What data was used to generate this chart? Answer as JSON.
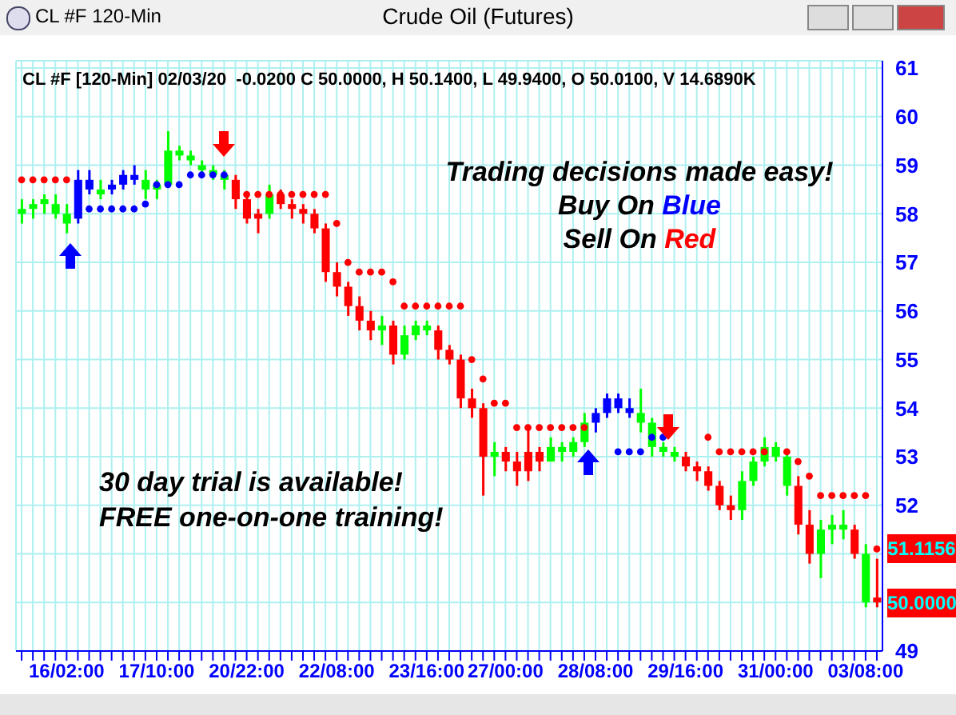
{
  "chart_data": {
    "type": "candlestick",
    "title": "Crude Oil (Futures)",
    "subtitle": "CL #F [120-Min] 02/03/20  -0.0200 C 50.0000, H 50.1400, L 49.9400, O 50.0100, V 14.6890K",
    "annotations": [
      "CL #F 120-Min",
      "Trading decisions made easy!",
      "Buy On Blue",
      "Sell On Red",
      "30 day trial is available!",
      "FREE one-on-one training!",
      {
        "text": "51.1156",
        "y": 51.1156
      },
      {
        "text": "50.0000",
        "y": 50.0
      }
    ],
    "categories": [
      null,
      null,
      null,
      null,
      "16/02:00",
      null,
      null,
      null,
      null,
      null,
      null,
      null,
      "17/10:00",
      null,
      null,
      null,
      null,
      null,
      null,
      null,
      "20/22:00",
      null,
      null,
      null,
      null,
      null,
      null,
      null,
      "22/08:00",
      null,
      null,
      null,
      null,
      null,
      null,
      null,
      "23/16:00",
      null,
      null,
      null,
      null,
      null,
      null,
      "27/00:00",
      null,
      null,
      null,
      null,
      null,
      null,
      null,
      "28/08:00",
      null,
      null,
      null,
      null,
      null,
      null,
      null,
      "29/16:00",
      null,
      null,
      null,
      null,
      null,
      null,
      null,
      "31/00:00",
      null,
      null,
      null,
      null,
      null,
      null,
      null,
      "03/08:00",
      null
    ],
    "ohlc": [
      [
        58.0,
        58.3,
        57.8,
        58.1
      ],
      [
        58.1,
        58.3,
        57.9,
        58.2
      ],
      [
        58.2,
        58.4,
        58.0,
        58.3
      ],
      [
        58.0,
        58.4,
        57.9,
        58.2
      ],
      [
        57.8,
        58.2,
        57.6,
        58.0
      ],
      [
        57.9,
        58.9,
        57.8,
        58.7
      ],
      [
        58.5,
        58.9,
        58.4,
        58.7
      ],
      [
        58.4,
        58.7,
        58.3,
        58.5
      ],
      [
        58.5,
        58.7,
        58.4,
        58.6
      ],
      [
        58.6,
        58.9,
        58.5,
        58.8
      ],
      [
        58.7,
        59.0,
        58.6,
        58.8
      ],
      [
        58.5,
        58.9,
        58.3,
        58.7
      ],
      [
        58.5,
        58.7,
        58.3,
        58.6
      ],
      [
        58.6,
        59.7,
        58.6,
        59.3
      ],
      [
        59.2,
        59.4,
        59.1,
        59.3
      ],
      [
        59.1,
        59.3,
        59.0,
        59.2
      ],
      [
        58.9,
        59.1,
        58.8,
        59.0
      ],
      [
        58.8,
        59.0,
        58.7,
        58.9
      ],
      [
        58.7,
        58.9,
        58.5,
        58.8
      ],
      [
        58.7,
        58.8,
        58.1,
        58.3
      ],
      [
        58.3,
        58.4,
        57.8,
        57.9
      ],
      [
        58.0,
        58.1,
        57.6,
        57.9
      ],
      [
        58.0,
        58.6,
        57.9,
        58.4
      ],
      [
        58.4,
        58.5,
        58.1,
        58.2
      ],
      [
        58.2,
        58.3,
        57.9,
        58.1
      ],
      [
        58.1,
        58.2,
        57.8,
        58.0
      ],
      [
        58.0,
        58.1,
        57.6,
        57.7
      ],
      [
        57.7,
        57.8,
        56.6,
        56.8
      ],
      [
        56.8,
        57.0,
        56.3,
        56.5
      ],
      [
        56.5,
        56.6,
        55.9,
        56.1
      ],
      [
        56.1,
        56.3,
        55.6,
        55.8
      ],
      [
        55.8,
        56.0,
        55.4,
        55.6
      ],
      [
        55.6,
        55.9,
        55.3,
        55.7
      ],
      [
        55.7,
        55.8,
        54.9,
        55.1
      ],
      [
        55.1,
        55.7,
        55.0,
        55.5
      ],
      [
        55.5,
        55.8,
        55.4,
        55.7
      ],
      [
        55.6,
        55.8,
        55.5,
        55.7
      ],
      [
        55.6,
        55.7,
        55.0,
        55.2
      ],
      [
        55.2,
        55.3,
        54.9,
        55.0
      ],
      [
        55.0,
        55.1,
        54.0,
        54.2
      ],
      [
        54.2,
        54.4,
        53.8,
        54.0
      ],
      [
        54.0,
        54.1,
        52.2,
        53.0
      ],
      [
        53.0,
        53.3,
        52.6,
        53.1
      ],
      [
        53.1,
        53.2,
        52.7,
        52.9
      ],
      [
        52.9,
        53.1,
        52.4,
        52.7
      ],
      [
        53.1,
        53.6,
        52.5,
        52.7
      ],
      [
        53.1,
        53.2,
        52.7,
        52.9
      ],
      [
        52.9,
        53.4,
        52.9,
        53.2
      ],
      [
        53.1,
        53.3,
        52.9,
        53.2
      ],
      [
        53.1,
        53.4,
        53.0,
        53.3
      ],
      [
        53.3,
        53.9,
        53.2,
        53.7
      ],
      [
        53.7,
        54.0,
        53.5,
        53.9
      ],
      [
        53.9,
        54.3,
        53.8,
        54.2
      ],
      [
        54.0,
        54.3,
        53.9,
        54.2
      ],
      [
        53.9,
        54.2,
        53.8,
        54.0
      ],
      [
        53.7,
        54.4,
        53.5,
        53.9
      ],
      [
        53.2,
        53.8,
        53.0,
        53.7
      ],
      [
        53.1,
        53.3,
        53.0,
        53.2
      ],
      [
        53.0,
        53.2,
        52.9,
        53.1
      ],
      [
        53.0,
        53.1,
        52.7,
        52.8
      ],
      [
        52.8,
        52.9,
        52.5,
        52.7
      ],
      [
        52.7,
        52.8,
        52.3,
        52.4
      ],
      [
        52.4,
        52.5,
        51.9,
        52.0
      ],
      [
        52.0,
        52.2,
        51.7,
        51.9
      ],
      [
        51.9,
        52.7,
        51.7,
        52.5
      ],
      [
        52.5,
        53.0,
        52.4,
        52.9
      ],
      [
        52.9,
        53.4,
        52.8,
        53.2
      ],
      [
        53.0,
        53.3,
        52.9,
        53.2
      ],
      [
        52.4,
        53.1,
        52.2,
        53.0
      ],
      [
        52.4,
        52.6,
        51.4,
        51.6
      ],
      [
        51.6,
        51.9,
        50.8,
        51.0
      ],
      [
        51.0,
        51.7,
        50.5,
        51.5
      ],
      [
        51.5,
        51.8,
        51.2,
        51.6
      ],
      [
        51.5,
        51.9,
        51.3,
        51.6
      ],
      [
        51.5,
        51.6,
        50.9,
        51.0
      ],
      [
        50.0,
        51.2,
        49.9,
        51.0
      ],
      [
        50.1,
        50.9,
        49.9,
        50.0
      ]
    ],
    "colors": [
      "#00ff00",
      "#00ff00",
      "#00ff00",
      "#00ff00",
      "#00ff00",
      "#0000ff",
      "#0000ff",
      "#00ff00",
      "#0000ff",
      "#0000ff",
      "#0000ff",
      "#00ff00",
      "#00ff00",
      "#00ff00",
      "#00ff00",
      "#00ff00",
      "#00ff00",
      "#00ff00",
      "#00ff00",
      "#ff0000",
      "#ff0000",
      "#ff0000",
      "#00ff00",
      "#ff0000",
      "#ff0000",
      "#ff0000",
      "#ff0000",
      "#ff0000",
      "#ff0000",
      "#ff0000",
      "#ff0000",
      "#ff0000",
      "#00ff00",
      "#ff0000",
      "#00ff00",
      "#00ff00",
      "#00ff00",
      "#ff0000",
      "#ff0000",
      "#ff0000",
      "#ff0000",
      "#ff0000",
      "#00ff00",
      "#ff0000",
      "#ff0000",
      "#ff0000",
      "#ff0000",
      "#00ff00",
      "#00ff00",
      "#00ff00",
      "#00ff00",
      "#0000ff",
      "#0000ff",
      "#0000ff",
      "#0000ff",
      "#00ff00",
      "#00ff00",
      "#00ff00",
      "#00ff00",
      "#ff0000",
      "#ff0000",
      "#ff0000",
      "#ff0000",
      "#ff0000",
      "#00ff00",
      "#00ff00",
      "#00ff00",
      "#00ff00",
      "#00ff00",
      "#ff0000",
      "#ff0000",
      "#00ff00",
      "#00ff00",
      "#00ff00",
      "#ff0000",
      "#00ff00",
      "#ff0000"
    ],
    "series": [
      {
        "type": "scatter",
        "color": "#ff0000",
        "values": [
          58.7,
          58.7,
          58.7,
          58.7,
          58.7,
          null,
          null,
          null,
          null,
          null,
          null,
          null,
          null,
          null,
          null,
          null,
          null,
          null,
          null,
          null,
          58.4,
          58.4,
          58.4,
          58.4,
          58.4,
          58.4,
          58.4,
          58.4,
          57.8,
          57.0,
          56.8,
          56.8,
          56.8,
          56.6,
          56.1,
          56.1,
          56.1,
          56.1,
          56.1,
          56.1,
          55.0,
          54.6,
          54.1,
          54.1,
          53.6,
          53.6,
          53.6,
          53.6,
          53.6,
          53.6,
          53.6,
          null,
          null,
          null,
          null,
          null,
          null,
          null,
          null,
          null,
          null,
          53.4,
          53.1,
          53.1,
          53.1,
          53.1,
          53.1,
          null,
          53.1,
          52.9,
          52.6,
          52.2,
          52.2,
          52.2,
          52.2,
          52.2,
          51.1
        ]
      },
      {
        "type": "scatter",
        "color": "#0000ff",
        "values": [
          null,
          null,
          null,
          null,
          null,
          null,
          58.1,
          58.1,
          58.1,
          58.1,
          58.1,
          58.2,
          58.6,
          58.6,
          58.6,
          58.8,
          58.8,
          58.8,
          58.8,
          null,
          null,
          null,
          null,
          null,
          null,
          null,
          null,
          null,
          null,
          null,
          null,
          null,
          null,
          null,
          null,
          null,
          null,
          null,
          null,
          null,
          null,
          null,
          null,
          null,
          null,
          null,
          null,
          null,
          null,
          null,
          null,
          null,
          null,
          53.1,
          53.1,
          53.1,
          53.4,
          53.4,
          null,
          null,
          null,
          null,
          null,
          null,
          null,
          null,
          null,
          null,
          null,
          null,
          null,
          null,
          null,
          null,
          null,
          null,
          null
        ]
      }
    ],
    "ylim": [
      49,
      61.15
    ],
    "yticks": [
      49,
      {
        "value": 50,
        "label": null
      },
      {
        "value": 51,
        "label": null
      },
      52,
      53,
      54,
      55,
      56,
      57,
      58,
      59,
      60,
      61
    ],
    "grid": true,
    "marker": "circle"
  }
}
